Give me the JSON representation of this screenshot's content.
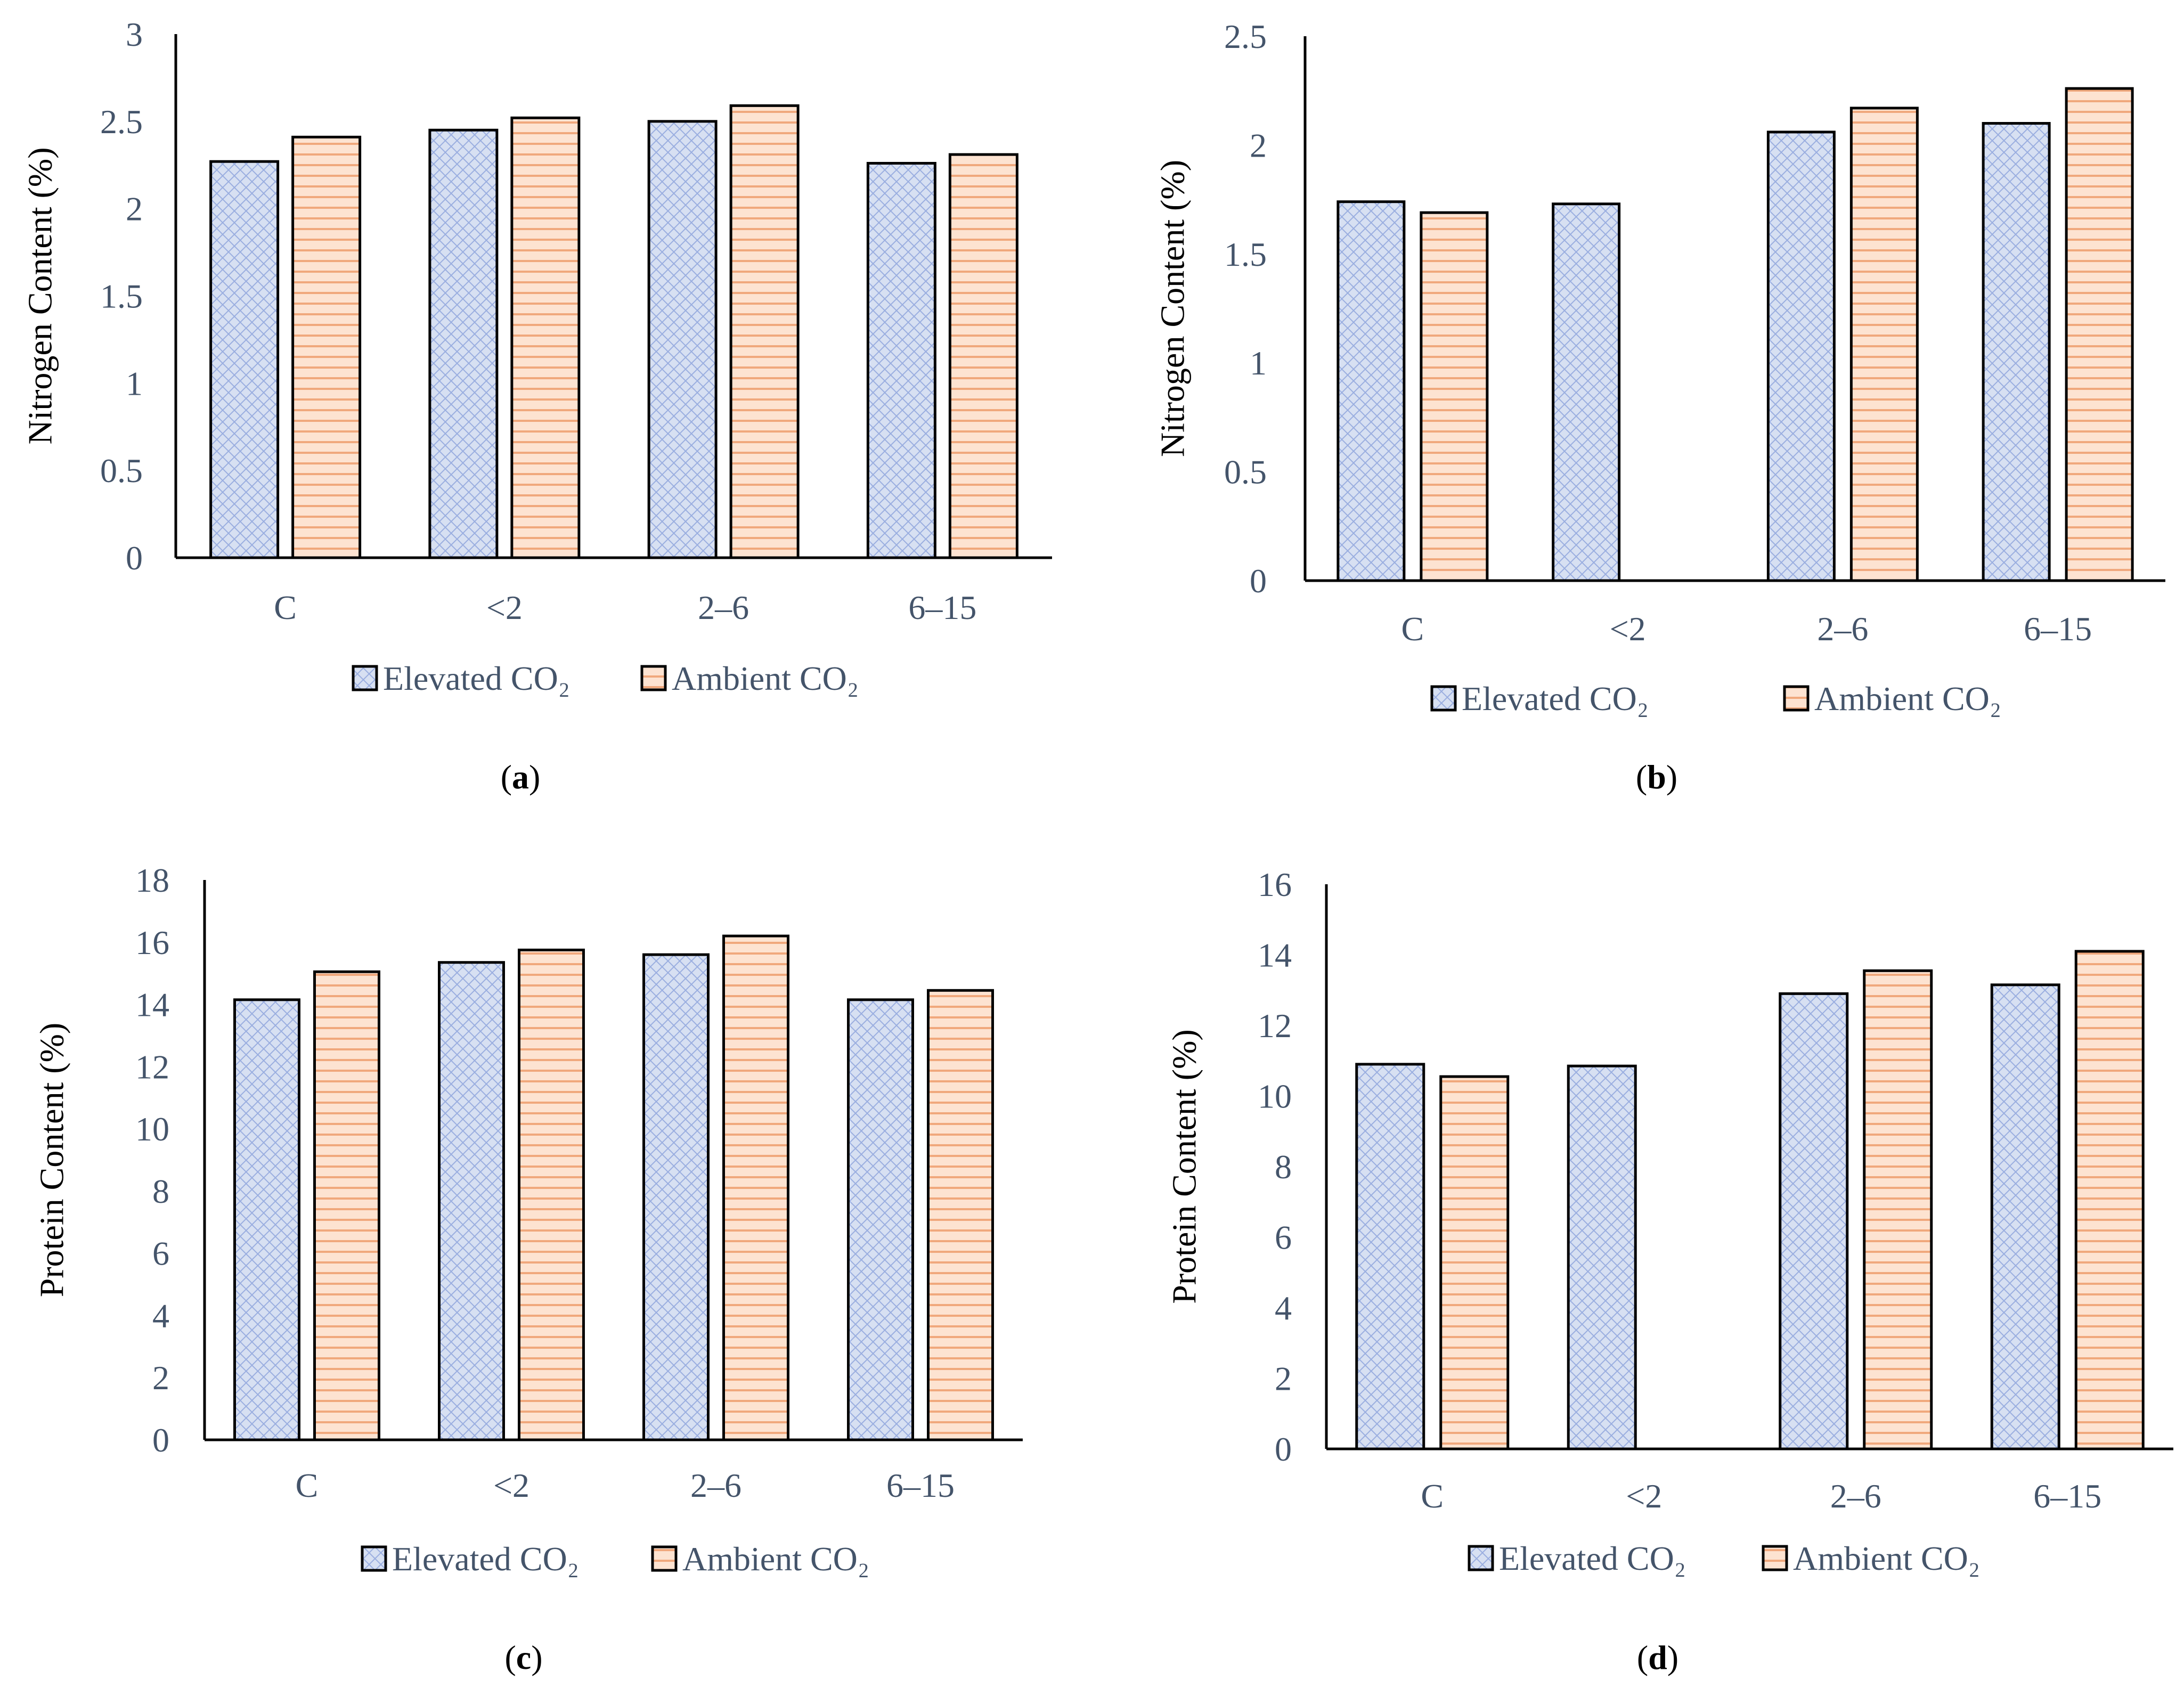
{
  "figure": {
    "series_names": [
      "Elevated CO₂",
      "Ambient CO₂"
    ],
    "colors": {
      "elevated_fill": "#d7e0f2",
      "elevated_hatch": "#9aaee0",
      "ambient_fill": "#fde3d1",
      "ambient_hatch": "#f0a87c",
      "axis": "#000000",
      "text": "#44546a"
    }
  },
  "chart_data": [
    {
      "panel": "(a)",
      "panel_letter": "a",
      "type": "bar",
      "ylabel": "Nitrogen Content (%)",
      "categories": [
        "C",
        "<2",
        "2–6",
        "6–15"
      ],
      "ylim": [
        0,
        3
      ],
      "yticks": [
        "0",
        "0.5",
        "1",
        "1.5",
        "2",
        "2.5",
        "3"
      ],
      "ytick_values": [
        0,
        0.5,
        1,
        1.5,
        2,
        2.5,
        3
      ],
      "series": [
        {
          "name": "Elevated CO₂",
          "values": [
            2.27,
            2.45,
            2.5,
            2.26
          ]
        },
        {
          "name": "Ambient CO₂",
          "values": [
            2.41,
            2.52,
            2.59,
            2.31
          ]
        }
      ]
    },
    {
      "panel": "(b)",
      "panel_letter": "b",
      "type": "bar",
      "ylabel": "Nitrogen Content (%)",
      "categories": [
        "C",
        "<2",
        "2–6",
        "6–15"
      ],
      "ylim": [
        0,
        2.5
      ],
      "yticks": [
        "0",
        "0.5",
        "1",
        "1.5",
        "2",
        "2.5"
      ],
      "ytick_values": [
        0,
        0.5,
        1,
        1.5,
        2,
        2.5
      ],
      "series": [
        {
          "name": "Elevated CO₂",
          "values": [
            1.74,
            1.73,
            2.06,
            2.1
          ]
        },
        {
          "name": "Ambient CO₂",
          "values": [
            1.69,
            null,
            2.17,
            2.26
          ]
        }
      ]
    },
    {
      "panel": "(c)",
      "panel_letter": "c",
      "type": "bar",
      "ylabel": "Protein Content (%)",
      "categories": [
        "C",
        "<2",
        "2–6",
        "6–15"
      ],
      "ylim": [
        0,
        18
      ],
      "yticks": [
        "0",
        "2",
        "4",
        "6",
        "8",
        "10",
        "12",
        "14",
        "16",
        "18"
      ],
      "ytick_values": [
        0,
        2,
        4,
        6,
        8,
        10,
        12,
        14,
        16,
        18
      ],
      "series": [
        {
          "name": "Elevated CO₂",
          "values": [
            14.15,
            15.35,
            15.6,
            14.15
          ]
        },
        {
          "name": "Ambient CO₂",
          "values": [
            15.05,
            15.75,
            16.2,
            14.45
          ]
        }
      ]
    },
    {
      "panel": "(d)",
      "panel_letter": "d",
      "type": "bar",
      "ylabel": "Protein Content (%)",
      "categories": [
        "C",
        "<2",
        "2–6",
        "6–15"
      ],
      "ylim": [
        0,
        16
      ],
      "yticks": [
        "0",
        "2",
        "4",
        "6",
        "8",
        "10",
        "12",
        "14",
        "16"
      ],
      "ytick_values": [
        0,
        2,
        4,
        6,
        8,
        10,
        12,
        14,
        16
      ],
      "series": [
        {
          "name": "Elevated CO₂",
          "values": [
            10.9,
            10.85,
            12.9,
            13.15
          ]
        },
        {
          "name": "Ambient CO₂",
          "values": [
            10.55,
            null,
            13.55,
            14.1
          ]
        }
      ]
    }
  ]
}
